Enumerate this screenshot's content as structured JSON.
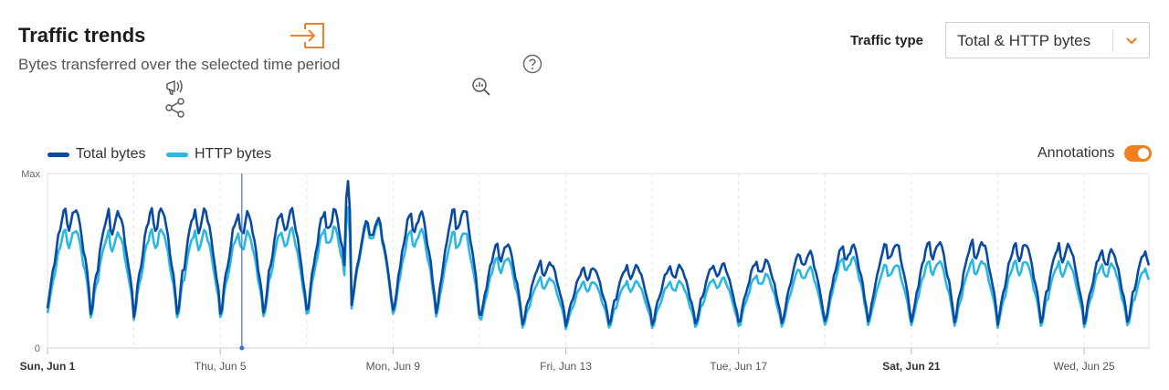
{
  "header": {
    "title": "Traffic trends",
    "subtitle": "Bytes transferred over the selected time period",
    "traffic_type_label": "Traffic type",
    "traffic_type_value": "Total & HTTP bytes"
  },
  "icons": {
    "export": "export-icon",
    "announce": "megaphone-icon",
    "share": "share-icon",
    "help": "help-icon",
    "zoom": "zoom-chart-icon",
    "dropdown": "chevron-down-icon"
  },
  "colors": {
    "accent": "#f38020",
    "total": "#0b4aa2",
    "http": "#2bb8e0",
    "annotation": "#3a6fd8"
  },
  "annotations": {
    "label": "Annotations",
    "enabled": true
  },
  "chart_data": {
    "type": "line",
    "x_start": "Sun, Jun 1",
    "x_end_day": 26.5,
    "ylim": [
      0,
      1
    ],
    "y_ticks": [
      "0",
      "Max"
    ],
    "x_ticks": [
      {
        "day": 1,
        "label": "Sun, Jun 1",
        "bold": true
      },
      {
        "day": 5,
        "label": "Thu, Jun 5",
        "bold": false
      },
      {
        "day": 9,
        "label": "Mon, Jun 9",
        "bold": false
      },
      {
        "day": 13,
        "label": "Fri, Jun 13",
        "bold": false
      },
      {
        "day": 17,
        "label": "Tue, Jun 17",
        "bold": false
      },
      {
        "day": 21,
        "label": "Sat, Jun 21",
        "bold": true
      },
      {
        "day": 25,
        "label": "Wed, Jun 25",
        "bold": false
      }
    ],
    "annotation_day": 5.5,
    "series": [
      {
        "name": "Total bytes",
        "color": "#0b4aa2",
        "daily_peak": [
          0.8,
          0.78,
          0.8,
          0.79,
          0.77,
          0.79,
          0.79,
          0.74,
          0.78,
          0.8,
          0.6,
          0.49,
          0.46,
          0.47,
          0.47,
          0.48,
          0.5,
          0.55,
          0.59,
          0.6,
          0.61,
          0.61,
          0.6,
          0.59,
          0.56,
          0.56
        ],
        "daily_min": [
          0.24,
          0.2,
          0.2,
          0.2,
          0.2,
          0.2,
          0.2,
          0.2,
          0.2,
          0.2,
          0.14,
          0.14,
          0.14,
          0.14,
          0.14,
          0.14,
          0.14,
          0.14,
          0.15,
          0.15,
          0.15,
          0.15,
          0.15,
          0.15,
          0.15,
          0.15
        ],
        "spike": {
          "day": 7.95,
          "value": 0.99
        }
      },
      {
        "name": "HTTP bytes",
        "color": "#2bb8e0",
        "daily_peak": [
          0.68,
          0.66,
          0.68,
          0.67,
          0.66,
          0.68,
          0.69,
          0.72,
          0.68,
          0.67,
          0.52,
          0.4,
          0.38,
          0.38,
          0.38,
          0.4,
          0.42,
          0.46,
          0.52,
          0.48,
          0.5,
          0.5,
          0.5,
          0.49,
          0.48,
          0.46
        ],
        "daily_min": [
          0.21,
          0.18,
          0.18,
          0.18,
          0.18,
          0.18,
          0.18,
          0.18,
          0.18,
          0.18,
          0.12,
          0.12,
          0.12,
          0.12,
          0.12,
          0.12,
          0.12,
          0.12,
          0.13,
          0.13,
          0.13,
          0.13,
          0.13,
          0.13,
          0.13,
          0.13
        ],
        "spike": {
          "day": 7.95,
          "value": 0.84
        }
      }
    ],
    "grid": true,
    "legend_position": "top-left"
  }
}
